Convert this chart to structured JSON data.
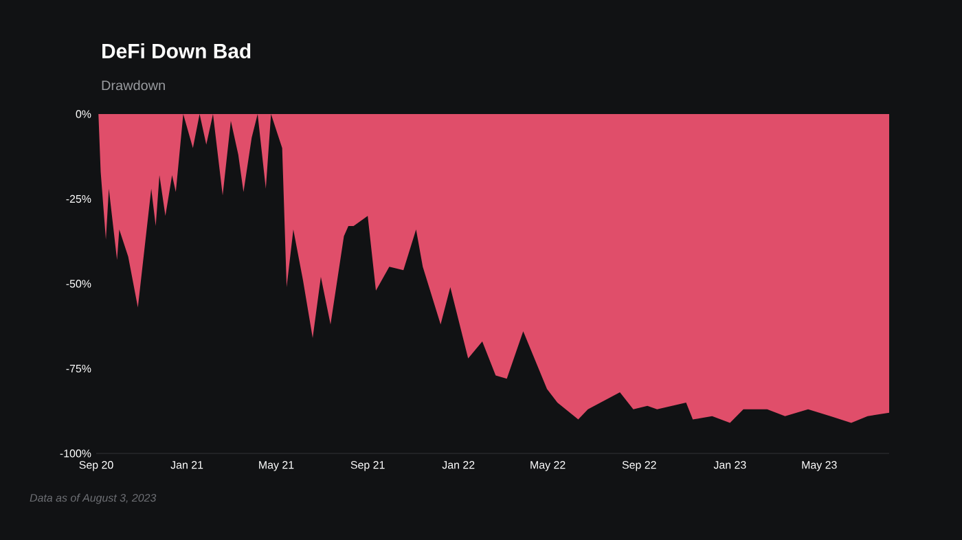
{
  "chart_data": {
    "type": "area",
    "title": "DeFi Down Bad",
    "subtitle": "Drawdown",
    "annotations": [
      "Data as of August 3, 2023"
    ],
    "x": [
      "2020-09-01",
      "2020-09-04",
      "2020-09-07",
      "2020-09-14",
      "2020-09-18",
      "2020-09-29",
      "2020-10-02",
      "2020-10-14",
      "2020-10-27",
      "2020-11-14",
      "2020-11-20",
      "2020-11-25",
      "2020-12-03",
      "2020-12-12",
      "2020-12-17",
      "2020-12-27",
      "2021-01-09",
      "2021-01-18",
      "2021-01-27",
      "2021-02-05",
      "2021-02-18",
      "2021-03-01",
      "2021-03-11",
      "2021-03-18",
      "2021-03-29",
      "2021-04-06",
      "2021-04-17",
      "2021-04-24",
      "2021-05-03",
      "2021-05-09",
      "2021-05-15",
      "2021-05-24",
      "2021-06-06",
      "2021-06-19",
      "2021-06-30",
      "2021-07-13",
      "2021-07-31",
      "2021-08-06",
      "2021-08-13",
      "2021-09-01",
      "2021-09-12",
      "2021-09-30",
      "2021-10-19",
      "2021-11-05",
      "2021-11-14",
      "2021-12-08",
      "2021-12-21",
      "2022-01-14",
      "2022-02-02",
      "2022-02-20",
      "2022-03-07",
      "2022-03-29",
      "2022-04-30",
      "2022-05-14",
      "2022-06-11",
      "2022-06-24",
      "2022-08-06",
      "2022-08-24",
      "2022-09-12",
      "2022-09-25",
      "2022-11-03",
      "2022-11-12",
      "2022-12-08",
      "2023-01-01",
      "2023-01-19",
      "2023-02-20",
      "2023-03-16",
      "2023-04-16",
      "2023-05-16",
      "2023-06-13",
      "2023-07-05",
      "2023-08-03"
    ],
    "series": [
      {
        "color": "#e04e6a",
        "values": [
          0,
          0,
          -17,
          -37,
          -22,
          -43,
          -34,
          -42,
          -57,
          -22,
          -33,
          -18,
          -30,
          -18,
          -23,
          0,
          -10,
          0,
          -9,
          0,
          -24,
          -2,
          -12,
          -23,
          -7,
          0,
          -22,
          0,
          -6,
          -10,
          -51,
          -34,
          -49,
          -66,
          -48,
          -62,
          -36,
          -33,
          -33,
          -30,
          -52,
          -45,
          -46,
          -34,
          -45,
          -62,
          -51,
          -72,
          -67,
          -77,
          -78,
          -64,
          -81,
          -85,
          -90,
          -87,
          -82,
          -87,
          -86,
          -87,
          -85,
          -90,
          -89,
          -91,
          -87,
          -87,
          -89,
          -87,
          -89,
          -91,
          -89,
          -88
        ]
      }
    ],
    "xticks": [
      {
        "value": "2020-09-01",
        "label": "Sep 20"
      },
      {
        "value": "2021-01-01",
        "label": "Jan 21"
      },
      {
        "value": "2021-05-01",
        "label": "May 21"
      },
      {
        "value": "2021-09-01",
        "label": "Sep 21"
      },
      {
        "value": "2022-01-01",
        "label": "Jan 22"
      },
      {
        "value": "2022-05-01",
        "label": "May 22"
      },
      {
        "value": "2022-09-01",
        "label": "Sep 22"
      },
      {
        "value": "2023-01-01",
        "label": "Jan 23"
      },
      {
        "value": "2023-05-01",
        "label": "May 23"
      }
    ],
    "xlim": [
      "2020-09-01",
      "2023-08-03"
    ],
    "ylim": [
      -100,
      0
    ],
    "yticks": [
      {
        "value": 0,
        "label": "0%"
      },
      {
        "value": -25,
        "label": "-25%"
      },
      {
        "value": -50,
        "label": "-50%"
      },
      {
        "value": -75,
        "label": "-75%"
      },
      {
        "value": -100,
        "label": "-100%"
      }
    ]
  }
}
